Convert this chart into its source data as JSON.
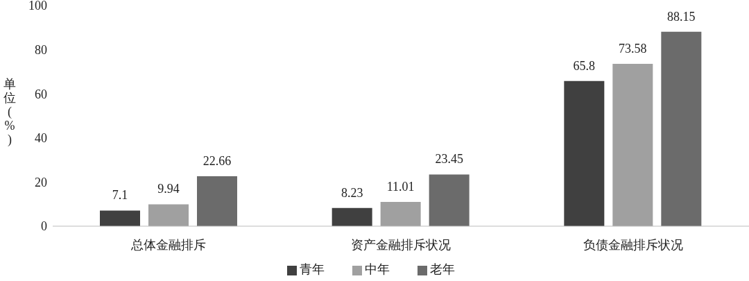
{
  "chart_data": {
    "type": "bar",
    "ylabel": "单位(%)",
    "categories": [
      "总体金融排斥",
      "资产金融排斥状况",
      "负债金融排斥状况"
    ],
    "series": [
      {
        "name": "青年",
        "color": "#404040",
        "values": [
          7.1,
          8.23,
          65.8
        ]
      },
      {
        "name": "中年",
        "color": "#a0a0a0",
        "values": [
          9.94,
          11.01,
          73.58
        ]
      },
      {
        "name": "老年",
        "color": "#6b6b6b",
        "values": [
          22.66,
          23.45,
          88.15
        ]
      }
    ],
    "ylim": [
      0,
      100
    ],
    "yticks": [
      0,
      20,
      40,
      60,
      80,
      100
    ],
    "grid": false,
    "legend": "bottom",
    "data_labels": true
  }
}
